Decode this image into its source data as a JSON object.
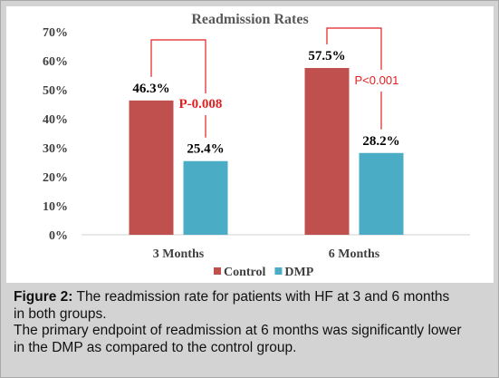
{
  "chart_data": {
    "type": "bar",
    "title": "Readmission Rates",
    "categories": [
      "3 Months",
      "6 Months"
    ],
    "series": [
      {
        "name": "Control",
        "color": "#c0504d",
        "values": [
          46.3,
          57.5
        ],
        "labels": [
          "46.3%",
          "57.5%"
        ]
      },
      {
        "name": "DMP",
        "color": "#4bacc6",
        "values": [
          25.4,
          28.2
        ],
        "labels": [
          "25.4%",
          "28.2%"
        ]
      }
    ],
    "ylim": [
      0,
      70
    ],
    "yticks": [
      "0%",
      "10%",
      "20%",
      "30%",
      "40%",
      "50%",
      "60%",
      "70%"
    ],
    "xlabel": "",
    "ylabel": "",
    "grid": false,
    "legend_position": "bottom",
    "annotations": [
      {
        "category": "3 Months",
        "text": "P-0.008",
        "color": "#e02020"
      },
      {
        "category": "6 Months",
        "text": "P<0.001",
        "color": "#e02020"
      }
    ]
  },
  "caption": {
    "label": "Figure 2:",
    "line1": " The readmission rate for patients with HF at 3 and 6 months",
    "line2": "in both groups.",
    "line3": "The primary endpoint of readmission at 6 months was significantly lower",
    "line4": "in the DMP as compared to the control group."
  }
}
